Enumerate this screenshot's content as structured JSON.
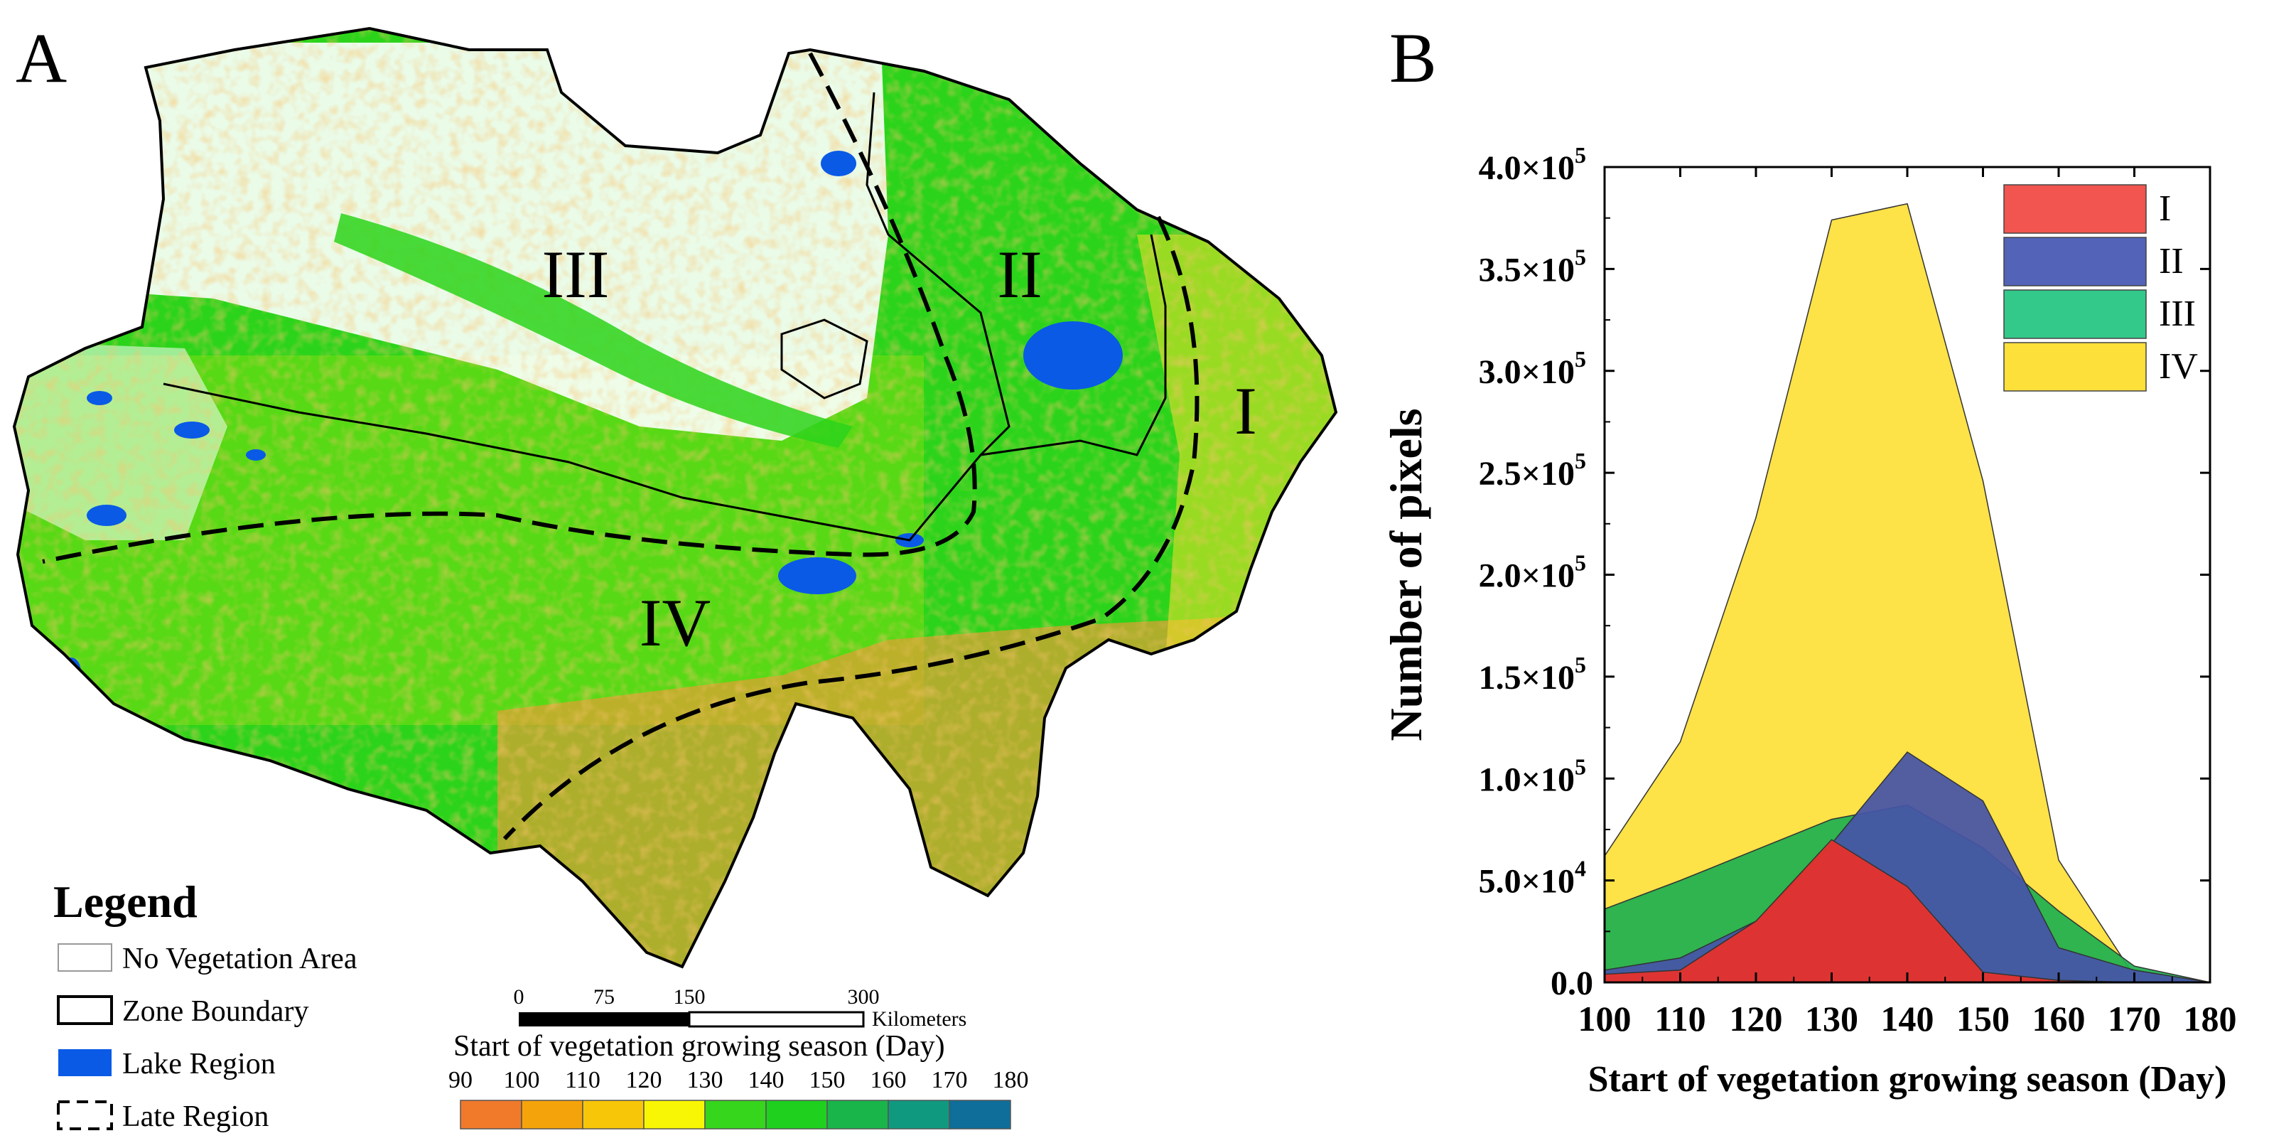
{
  "panel_a": {
    "label": "A",
    "regions": [
      "I",
      "II",
      "III",
      "IV"
    ],
    "legend": {
      "title": "Legend",
      "items": [
        {
          "key": "no_vegetation",
          "label": "No Vegetation Area",
          "color": "#ffffff"
        },
        {
          "key": "zone_boundary",
          "label": "Zone Boundary",
          "color": "#000000"
        },
        {
          "key": "lake",
          "label": "Lake Region",
          "color": "#0a5ae6"
        },
        {
          "key": "late",
          "label": "Late Region",
          "color": "#000000"
        }
      ]
    },
    "scalebar": {
      "ticks": [
        "0",
        "75",
        "150",
        "300"
      ],
      "unit": "Kilometers"
    },
    "colorbar": {
      "title": "Start of vegetation growing season (Day)",
      "ticks": [
        "90",
        "100",
        "110",
        "120",
        "130",
        "140",
        "150",
        "160",
        "170",
        "180"
      ],
      "colors": [
        "#f07a2a",
        "#f5a30a",
        "#f8c608",
        "#f9f605",
        "#36d61c",
        "#1fd01f",
        "#1ab54a",
        "#0f9a80",
        "#0f6e9a"
      ]
    },
    "map_colors": {
      "sea_green": "#2bd41a",
      "lime": "#7ddc12",
      "orange": "#f39a35",
      "yellow": "#f4e02a",
      "red": "#e3583a",
      "lake": "#0a5ae6"
    }
  },
  "panel_b": {
    "label": "B"
  },
  "chart_data": {
    "type": "area",
    "xlabel": "Start of vegetation growing season (Day)",
    "ylabel": "Number of pixels",
    "xlim": [
      100,
      180
    ],
    "ylim": [
      0,
      400000
    ],
    "x": [
      100,
      110,
      120,
      130,
      140,
      150,
      160,
      170,
      180
    ],
    "xticks": [
      "100",
      "110",
      "120",
      "130",
      "140",
      "150",
      "160",
      "170",
      "180"
    ],
    "yticks": [
      {
        "value": 0,
        "label": "0.0"
      },
      {
        "value": 50000,
        "label": "5.0×10",
        "exp": "4"
      },
      {
        "value": 100000,
        "label": "1.0×10",
        "exp": "5"
      },
      {
        "value": 150000,
        "label": "1.5×10",
        "exp": "5"
      },
      {
        "value": 200000,
        "label": "2.0×10",
        "exp": "5"
      },
      {
        "value": 250000,
        "label": "2.5×10",
        "exp": "5"
      },
      {
        "value": 300000,
        "label": "3.0×10",
        "exp": "5"
      },
      {
        "value": 350000,
        "label": "3.5×10",
        "exp": "5"
      },
      {
        "value": 400000,
        "label": "4.0×10",
        "exp": "5"
      }
    ],
    "legend_position": "top-right",
    "series": [
      {
        "name": "IV",
        "color": "#fde03a",
        "values": [
          62000,
          118000,
          228000,
          374000,
          382000,
          246000,
          60000,
          3000,
          0
        ]
      },
      {
        "name": "III",
        "color": "#1fb050",
        "values": [
          36000,
          50000,
          65000,
          80000,
          87000,
          66000,
          35000,
          8000,
          0
        ]
      },
      {
        "name": "II",
        "color": "#4654a8",
        "values": [
          6000,
          12000,
          30000,
          68000,
          113000,
          89000,
          17000,
          6000,
          0
        ]
      },
      {
        "name": "I",
        "color": "#e8312b",
        "values": [
          4000,
          6000,
          30000,
          70000,
          47000,
          5000,
          1000,
          0,
          0
        ]
      }
    ],
    "legend_order": [
      "I",
      "II",
      "III",
      "IV"
    ],
    "legend_colors": {
      "I": "#f2544f",
      "II": "#5263b8",
      "III": "#33c98a",
      "IV": "#fde03a"
    }
  }
}
